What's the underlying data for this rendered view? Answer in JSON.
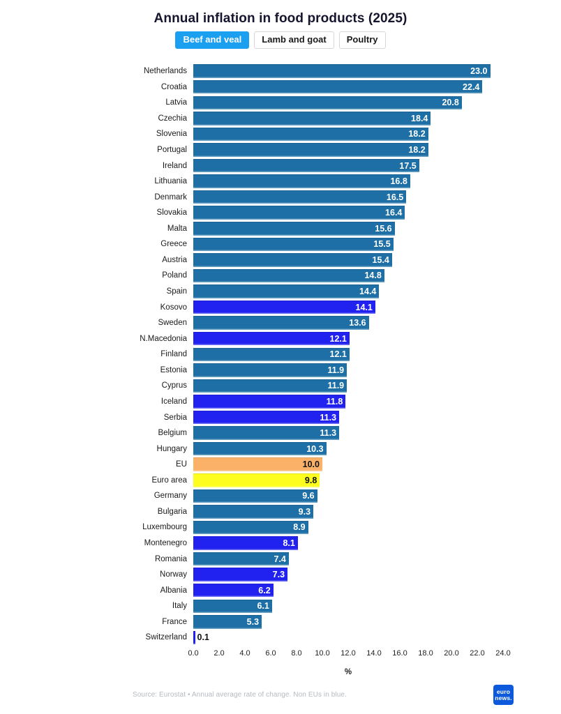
{
  "title": "Annual inflation in food products (2025)",
  "tabs": [
    {
      "label": "Beef and veal",
      "selected": true
    },
    {
      "label": "Lamb and goat",
      "selected": false
    },
    {
      "label": "Poultry",
      "selected": false
    }
  ],
  "chart_data": {
    "type": "bar",
    "orientation": "horizontal",
    "title": "Annual inflation in food products (2025)",
    "xlabel": "%",
    "xlim": [
      0.0,
      24.0
    ],
    "xticks": [
      "0.0",
      "2.0",
      "4.0",
      "6.0",
      "8.0",
      "10.0",
      "12.0",
      "14.0",
      "16.0",
      "18.0",
      "20.0",
      "22.0",
      "24.0"
    ],
    "grid": false,
    "legend": "none",
    "colors": {
      "eu": "#1d6fa5",
      "non_eu": "#2222f0",
      "eu_aggregate": "#fbb268",
      "euro_area": "#fdfd20"
    },
    "rows": [
      {
        "label": "Netherlands",
        "value": 23.0,
        "display": "23.0",
        "group": "eu"
      },
      {
        "label": "Croatia",
        "value": 22.4,
        "display": "22.4",
        "group": "eu"
      },
      {
        "label": "Latvia",
        "value": 20.8,
        "display": "20.8",
        "group": "eu"
      },
      {
        "label": "Czechia",
        "value": 18.4,
        "display": "18.4",
        "group": "eu"
      },
      {
        "label": "Slovenia",
        "value": 18.2,
        "display": "18.2",
        "group": "eu"
      },
      {
        "label": "Portugal",
        "value": 18.2,
        "display": "18.2",
        "group": "eu"
      },
      {
        "label": "Ireland",
        "value": 17.5,
        "display": "17.5",
        "group": "eu"
      },
      {
        "label": "Lithuania",
        "value": 16.8,
        "display": "16.8",
        "group": "eu"
      },
      {
        "label": "Denmark",
        "value": 16.5,
        "display": "16.5",
        "group": "eu"
      },
      {
        "label": "Slovakia",
        "value": 16.4,
        "display": "16.4",
        "group": "eu"
      },
      {
        "label": "Malta",
        "value": 15.6,
        "display": "15.6",
        "group": "eu"
      },
      {
        "label": "Greece",
        "value": 15.5,
        "display": "15.5",
        "group": "eu"
      },
      {
        "label": "Austria",
        "value": 15.4,
        "display": "15.4",
        "group": "eu"
      },
      {
        "label": "Poland",
        "value": 14.8,
        "display": "14.8",
        "group": "eu"
      },
      {
        "label": "Spain",
        "value": 14.4,
        "display": "14.4",
        "group": "eu"
      },
      {
        "label": "Kosovo",
        "value": 14.1,
        "display": "14.1",
        "group": "non_eu"
      },
      {
        "label": "Sweden",
        "value": 13.6,
        "display": "13.6",
        "group": "eu"
      },
      {
        "label": "N.Macedonia",
        "value": 12.1,
        "display": "12.1",
        "group": "non_eu"
      },
      {
        "label": "Finland",
        "value": 12.1,
        "display": "12.1",
        "group": "eu"
      },
      {
        "label": "Estonia",
        "value": 11.9,
        "display": "11.9",
        "group": "eu"
      },
      {
        "label": "Cyprus",
        "value": 11.9,
        "display": "11.9",
        "group": "eu"
      },
      {
        "label": "Iceland",
        "value": 11.8,
        "display": "11.8",
        "group": "non_eu"
      },
      {
        "label": "Serbia",
        "value": 11.3,
        "display": "11.3",
        "group": "non_eu"
      },
      {
        "label": "Belgium",
        "value": 11.3,
        "display": "11.3",
        "group": "eu"
      },
      {
        "label": "Hungary",
        "value": 10.3,
        "display": "10.3",
        "group": "eu"
      },
      {
        "label": "EU",
        "value": 10.0,
        "display": "10.0",
        "group": "eu_aggregate"
      },
      {
        "label": "Euro area",
        "value": 9.8,
        "display": "9.8",
        "group": "euro_area"
      },
      {
        "label": "Germany",
        "value": 9.6,
        "display": "9.6",
        "group": "eu"
      },
      {
        "label": "Bulgaria",
        "value": 9.3,
        "display": "9.3",
        "group": "eu"
      },
      {
        "label": "Luxembourg",
        "value": 8.9,
        "display": "8.9",
        "group": "eu"
      },
      {
        "label": "Montenegro",
        "value": 8.1,
        "display": "8.1",
        "group": "non_eu"
      },
      {
        "label": "Romania",
        "value": 7.4,
        "display": "7.4",
        "group": "eu"
      },
      {
        "label": "Norway",
        "value": 7.3,
        "display": "7.3",
        "group": "non_eu"
      },
      {
        "label": "Albania",
        "value": 6.2,
        "display": "6.2",
        "group": "non_eu"
      },
      {
        "label": "Italy",
        "value": 6.1,
        "display": "6.1",
        "group": "eu"
      },
      {
        "label": "France",
        "value": 5.3,
        "display": "5.3",
        "group": "eu"
      },
      {
        "label": "Switzerland",
        "value": 0.1,
        "display": "0.1",
        "group": "non_eu"
      }
    ]
  },
  "footer": {
    "source": "Source: Eurostat • Annual average rate of change. Non EUs in blue.",
    "logo_line1": "euro",
    "logo_line2": "news."
  }
}
